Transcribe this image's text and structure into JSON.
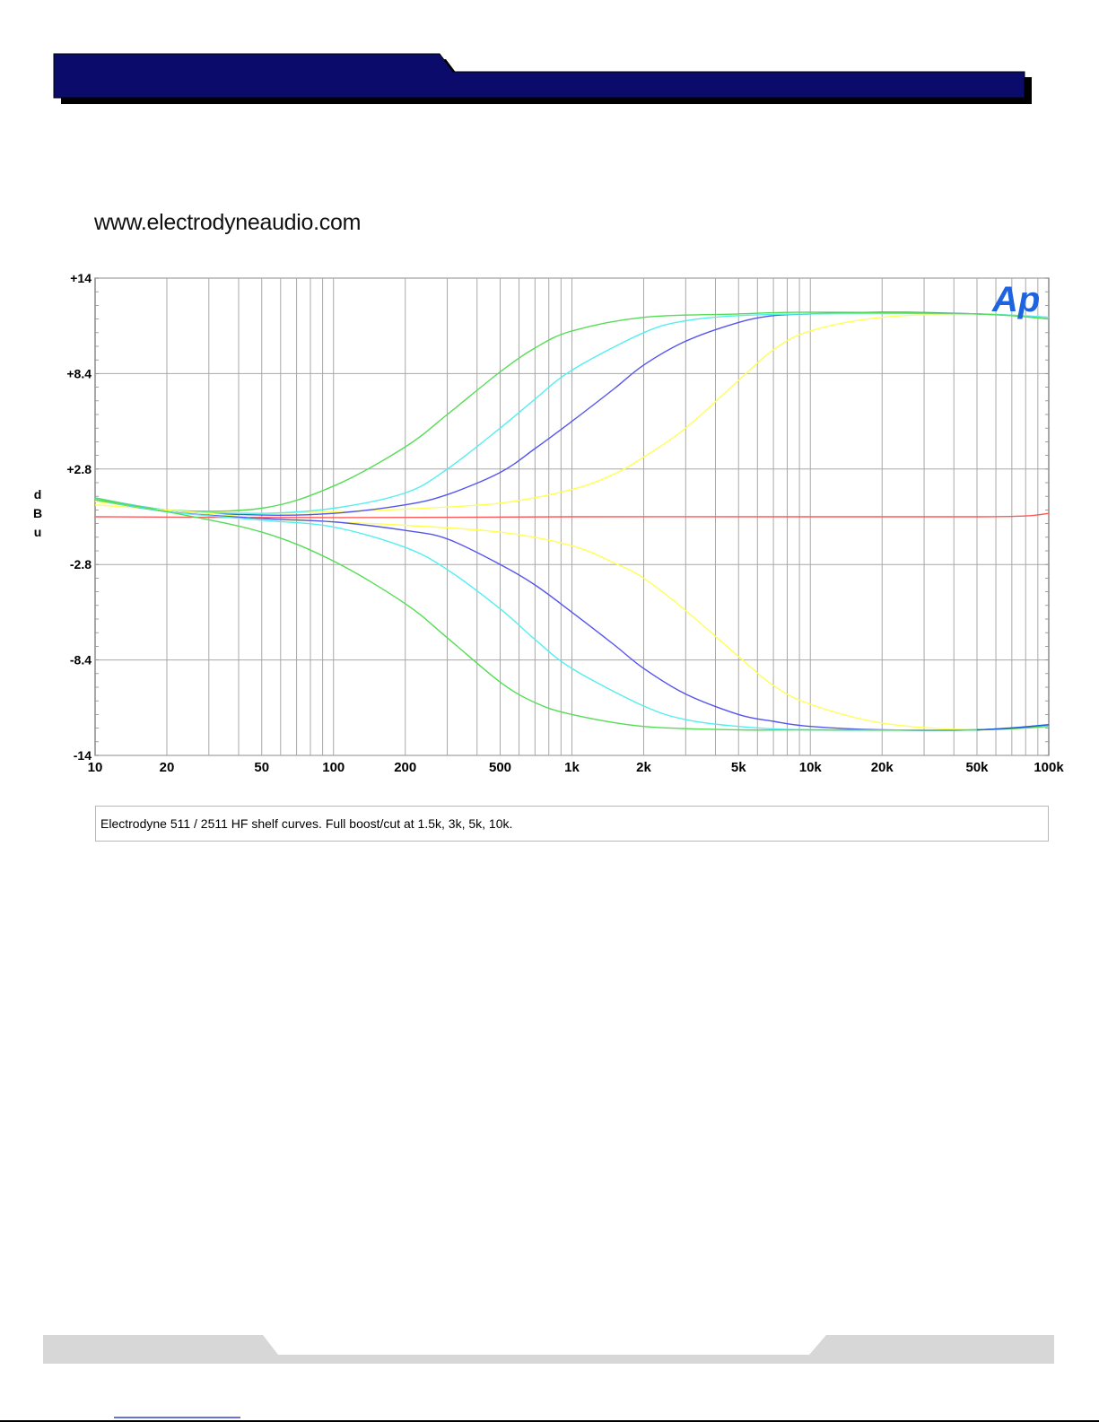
{
  "site_url": "www.electrodyneaudio.com",
  "caption": "Electrodyne 511 / 2511 HF shelf curves. Full boost/cut at 1.5k, 3k, 5k, 10k.",
  "logo_text": "Ap",
  "chart_data": {
    "type": "line",
    "title": "",
    "xlabel": "",
    "ylabel": "dBu",
    "x_scale": "log",
    "xlim": [
      10,
      100000
    ],
    "ylim": [
      -14,
      14
    ],
    "grid": true,
    "x_tick_values": [
      10,
      20,
      50,
      100,
      200,
      500,
      1000,
      2000,
      5000,
      10000,
      20000,
      50000,
      100000
    ],
    "x_tick_labels": [
      "10",
      "20",
      "50",
      "100",
      "200",
      "500",
      "1k",
      "2k",
      "5k",
      "10k",
      "20k",
      "50k",
      "100k"
    ],
    "y_tick_values": [
      14,
      8.4,
      2.8,
      -2.8,
      -8.4,
      -14
    ],
    "y_tick_labels": [
      "+14",
      "+8.4",
      "+2.8",
      "-2.8",
      "-8.4",
      "-14"
    ],
    "series": [
      {
        "color": "#ff5a5a",
        "values": [
          [
            10,
            0
          ],
          [
            100,
            -0.05
          ],
          [
            1000,
            0
          ],
          [
            10000,
            0
          ],
          [
            50000,
            0
          ],
          [
            80000,
            0.05
          ],
          [
            100000,
            0.2
          ]
        ]
      },
      {
        "color": "#ffff55",
        "values": [
          [
            10,
            0.9
          ],
          [
            20,
            0.4
          ],
          [
            30,
            0.3
          ],
          [
            50,
            0.2
          ],
          [
            100,
            0.3
          ],
          [
            200,
            0.45
          ],
          [
            500,
            0.8
          ],
          [
            1000,
            1.6
          ],
          [
            1500,
            2.5
          ],
          [
            2000,
            3.5
          ],
          [
            3000,
            5.2
          ],
          [
            5000,
            8.0
          ],
          [
            7000,
            9.8
          ],
          [
            10000,
            10.9
          ],
          [
            20000,
            11.7
          ],
          [
            50000,
            11.9
          ],
          [
            100000,
            11.7
          ]
        ]
      },
      {
        "color": "#5555ee",
        "values": [
          [
            10,
            1.1
          ],
          [
            20,
            0.4
          ],
          [
            50,
            0.1
          ],
          [
            100,
            0.2
          ],
          [
            200,
            0.7
          ],
          [
            300,
            1.3
          ],
          [
            500,
            2.6
          ],
          [
            700,
            4.0
          ],
          [
            1000,
            5.6
          ],
          [
            1500,
            7.5
          ],
          [
            2000,
            8.9
          ],
          [
            3000,
            10.3
          ],
          [
            5000,
            11.4
          ],
          [
            7000,
            11.8
          ],
          [
            10000,
            11.9
          ],
          [
            20000,
            12.0
          ],
          [
            50000,
            11.9
          ],
          [
            100000,
            11.7
          ]
        ]
      },
      {
        "color": "#55eeee",
        "values": [
          [
            10,
            1.1
          ],
          [
            20,
            0.4
          ],
          [
            50,
            0.2
          ],
          [
            100,
            0.5
          ],
          [
            200,
            1.4
          ],
          [
            300,
            2.8
          ],
          [
            500,
            5.2
          ],
          [
            700,
            6.9
          ],
          [
            1000,
            8.6
          ],
          [
            2000,
            10.8
          ],
          [
            3000,
            11.5
          ],
          [
            5000,
            11.8
          ],
          [
            10000,
            11.9
          ],
          [
            50000,
            11.9
          ],
          [
            100000,
            11.7
          ]
        ]
      },
      {
        "color": "#55dd55",
        "values": [
          [
            10,
            1.1
          ],
          [
            20,
            0.4
          ],
          [
            50,
            0.5
          ],
          [
            100,
            1.8
          ],
          [
            200,
            4.1
          ],
          [
            300,
            6.0
          ],
          [
            500,
            8.5
          ],
          [
            700,
            9.9
          ],
          [
            1000,
            10.9
          ],
          [
            2000,
            11.7
          ],
          [
            5000,
            11.9
          ],
          [
            10000,
            12.0
          ],
          [
            50000,
            11.9
          ],
          [
            100000,
            11.6
          ]
        ]
      },
      {
        "color": "#ffff55",
        "values": [
          [
            10,
            0.7
          ],
          [
            20,
            0.4
          ],
          [
            30,
            0.2
          ],
          [
            50,
            -0.1
          ],
          [
            100,
            -0.3
          ],
          [
            200,
            -0.5
          ],
          [
            500,
            -0.9
          ],
          [
            1000,
            -1.7
          ],
          [
            1500,
            -2.7
          ],
          [
            2000,
            -3.6
          ],
          [
            3000,
            -5.5
          ],
          [
            5000,
            -8.2
          ],
          [
            7000,
            -9.9
          ],
          [
            10000,
            -11.0
          ],
          [
            20000,
            -12.1
          ],
          [
            50000,
            -12.5
          ],
          [
            100000,
            -12.3
          ]
        ]
      },
      {
        "color": "#5555ee",
        "values": [
          [
            10,
            1.0
          ],
          [
            20,
            0.3
          ],
          [
            50,
            -0.1
          ],
          [
            100,
            -0.3
          ],
          [
            200,
            -0.8
          ],
          [
            300,
            -1.3
          ],
          [
            500,
            -2.8
          ],
          [
            700,
            -4.0
          ],
          [
            1000,
            -5.6
          ],
          [
            1500,
            -7.5
          ],
          [
            2000,
            -8.9
          ],
          [
            3000,
            -10.4
          ],
          [
            5000,
            -11.6
          ],
          [
            7000,
            -12.0
          ],
          [
            10000,
            -12.3
          ],
          [
            20000,
            -12.5
          ],
          [
            50000,
            -12.5
          ],
          [
            100000,
            -12.2
          ]
        ]
      },
      {
        "color": "#55eeee",
        "values": [
          [
            10,
            1.0
          ],
          [
            20,
            0.3
          ],
          [
            50,
            -0.2
          ],
          [
            100,
            -0.6
          ],
          [
            200,
            -1.8
          ],
          [
            300,
            -3.1
          ],
          [
            500,
            -5.4
          ],
          [
            700,
            -7.2
          ],
          [
            1000,
            -8.9
          ],
          [
            2000,
            -11.1
          ],
          [
            3000,
            -11.9
          ],
          [
            5000,
            -12.3
          ],
          [
            10000,
            -12.5
          ],
          [
            50000,
            -12.5
          ],
          [
            100000,
            -12.3
          ]
        ]
      },
      {
        "color": "#55dd55",
        "values": [
          [
            10,
            1.0
          ],
          [
            20,
            0.3
          ],
          [
            50,
            -0.9
          ],
          [
            100,
            -2.6
          ],
          [
            200,
            -5.1
          ],
          [
            300,
            -7.1
          ],
          [
            500,
            -9.7
          ],
          [
            700,
            -10.9
          ],
          [
            1000,
            -11.6
          ],
          [
            2000,
            -12.3
          ],
          [
            5000,
            -12.5
          ],
          [
            10000,
            -12.5
          ],
          [
            50000,
            -12.5
          ],
          [
            100000,
            -12.3
          ]
        ]
      },
      {
        "color": "#1a5fd6",
        "values": [
          [
            50000,
            -12.5
          ],
          [
            70000,
            -12.4
          ],
          [
            100000,
            -12.2
          ]
        ]
      }
    ]
  }
}
